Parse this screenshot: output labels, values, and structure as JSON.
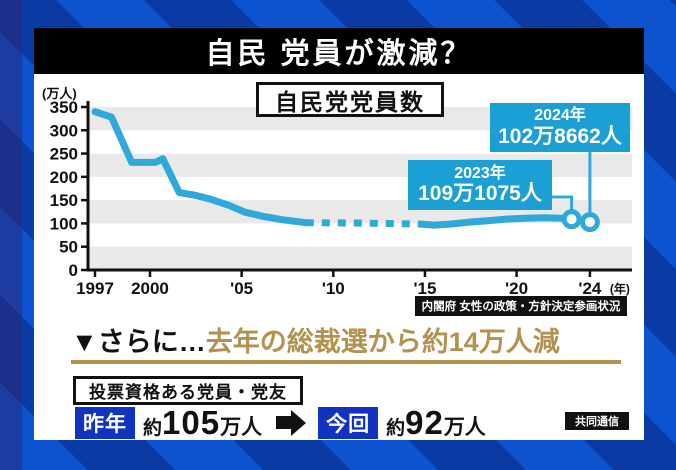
{
  "header": {
    "title": "自民 党員が激減？"
  },
  "chart": {
    "title": "自民党党員数",
    "source": "内閣府 女性の政策・方針決定参画状況",
    "callouts": [
      {
        "year_label": "2023年",
        "value_label": "109万1075人"
      },
      {
        "year_label": "2024年",
        "value_label": "102万8662人"
      }
    ]
  },
  "chart_data": {
    "type": "line",
    "title": "自民党党員数",
    "ylabel": "(万人)",
    "xlabel": "(年)",
    "ylim": [
      0,
      350
    ],
    "xlim": [
      1997,
      2024
    ],
    "grid": "alternating horizontal gray bands",
    "legend": "none",
    "yticks": [
      350,
      300,
      250,
      200,
      150,
      100,
      50,
      0
    ],
    "xticks": [
      {
        "year": 1997,
        "label": "1997"
      },
      {
        "year": 2000,
        "label": "2000"
      },
      {
        "year": 2005,
        "label": "'05"
      },
      {
        "year": 2010,
        "label": "'10"
      },
      {
        "year": 2015,
        "label": "'15"
      },
      {
        "year": 2020,
        "label": "'20"
      },
      {
        "year": 2024,
        "label": "'24"
      }
    ],
    "shaded_bands": [
      [
        300,
        350
      ],
      [
        200,
        250
      ],
      [
        100,
        150
      ],
      [
        0,
        50
      ]
    ],
    "line_color": "#2fa9da",
    "series": [
      {
        "name": "自民党党員数(万人)・実線前半",
        "style": "solid",
        "points": [
          [
            1997,
            340
          ],
          [
            1997.9,
            328
          ],
          [
            1999,
            231
          ],
          [
            2000.3,
            231
          ],
          [
            2000.7,
            239
          ],
          [
            2001.6,
            166
          ],
          [
            2002.4,
            161
          ],
          [
            2003.3,
            152
          ],
          [
            2004.3,
            139
          ],
          [
            2005.2,
            124
          ],
          [
            2006.2,
            115
          ],
          [
            2007.2,
            108
          ],
          [
            2008.5,
            101.5
          ]
        ]
      },
      {
        "name": "自民党党員数(万人)・点線区間",
        "style": "dashed",
        "points": [
          [
            2008.5,
            101.5
          ],
          [
            2011,
            101
          ],
          [
            2014.8,
            98.5
          ]
        ]
      },
      {
        "name": "自民党党員数(万人)・実線近年",
        "style": "solid",
        "points": [
          [
            2014.8,
            98.5
          ],
          [
            2015.5,
            96.5
          ],
          [
            2016.5,
            99
          ],
          [
            2017.5,
            103
          ],
          [
            2018.5,
            106
          ],
          [
            2019.5,
            109.5
          ],
          [
            2020.5,
            111
          ],
          [
            2021.5,
            112
          ],
          [
            2022.5,
            111
          ],
          [
            2023,
            109.1
          ],
          [
            2024,
            102.9
          ]
        ]
      }
    ],
    "markers": [
      {
        "year": 2023,
        "value": 109.1075,
        "label": "2023年 109万1075人"
      },
      {
        "year": 2024,
        "value": 102.8662,
        "label": "2024年 102万8662人"
      }
    ]
  },
  "lower": {
    "lead": "▼さらに…",
    "headline_gold": "去年の総裁選から約14万人減",
    "eligible_label": "投票資格ある党員・党友",
    "compare": {
      "left": {
        "tag": "昨年",
        "prefix": "約",
        "number": "105",
        "unit": "万人"
      },
      "right": {
        "tag": "今回",
        "prefix": "約",
        "number": "92",
        "unit": "万人"
      }
    },
    "credit": "共同通信"
  },
  "colors": {
    "accent_cyan": "#2fa9da",
    "callout_cyan": "#1b9fd4",
    "gold": "#b3914f",
    "royal_blue": "#1233bf",
    "bg_blue_bright": "#0d52cf",
    "bg_blue_dark": "#0a3aa3",
    "band_gray": "#e9e9e9"
  }
}
